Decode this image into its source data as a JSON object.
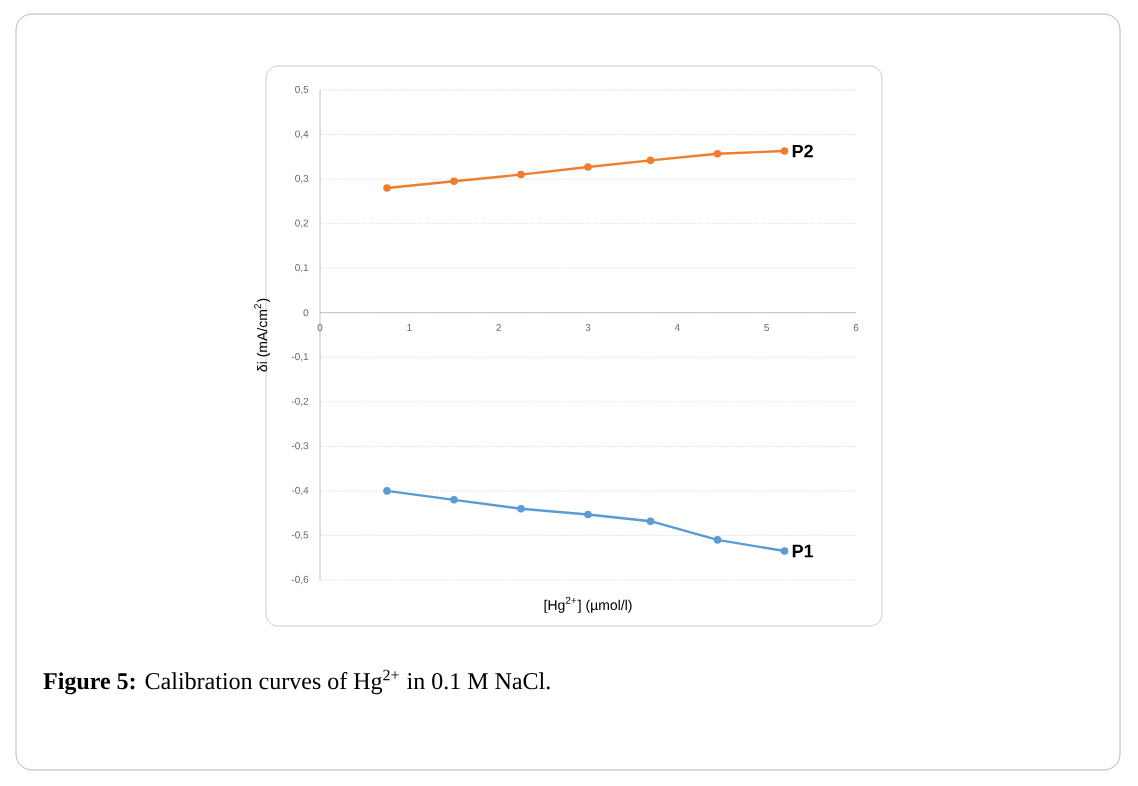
{
  "chart_data": {
    "type": "line",
    "xlabel": "[Hg$^{2+}$] (µmol/l)",
    "ylabel": "δi (mA/cm$^{2}$)",
    "xlim": [
      0,
      6
    ],
    "xticks": [
      0,
      1,
      2,
      3,
      4,
      5,
      6
    ],
    "ylim": [
      -0.6,
      0.5
    ],
    "yticks": [
      {
        "value": -0.6,
        "label": "-0,6"
      },
      {
        "value": -0.5,
        "label": "-0,5"
      },
      {
        "value": -0.4,
        "label": "-0,4"
      },
      {
        "value": -0.3,
        "label": "-0,3"
      },
      {
        "value": -0.2,
        "label": "-0,2"
      },
      {
        "value": -0.1,
        "label": "-0,1"
      },
      {
        "value": 0,
        "label": "0"
      },
      {
        "value": 0.1,
        "label": "0,1"
      },
      {
        "value": 0.2,
        "label": "0,2"
      },
      {
        "value": 0.3,
        "label": "0,3"
      },
      {
        "value": 0.4,
        "label": "0,4"
      },
      {
        "value": 0.5,
        "label": "0,5"
      }
    ],
    "x": [
      0.75,
      1.5,
      2.25,
      3.0,
      3.7,
      4.45,
      5.2
    ],
    "series": [
      {
        "name": "P1",
        "color": "#5b9bd5",
        "values": [
          -0.4,
          -0.42,
          -0.44,
          -0.453,
          -0.468,
          -0.51,
          -0.535
        ]
      },
      {
        "name": "P2",
        "color": "#f07d2e",
        "values": [
          0.28,
          0.295,
          0.31,
          0.327,
          0.342,
          0.357,
          0.363
        ]
      }
    ],
    "grid": "y",
    "marker": "circle",
    "line_style": "solid",
    "legend": false,
    "annotations": [
      "**Figure 5:** Calibration curves of Hg$^{2+}$ in 0.1 M NaCl."
    ]
  }
}
